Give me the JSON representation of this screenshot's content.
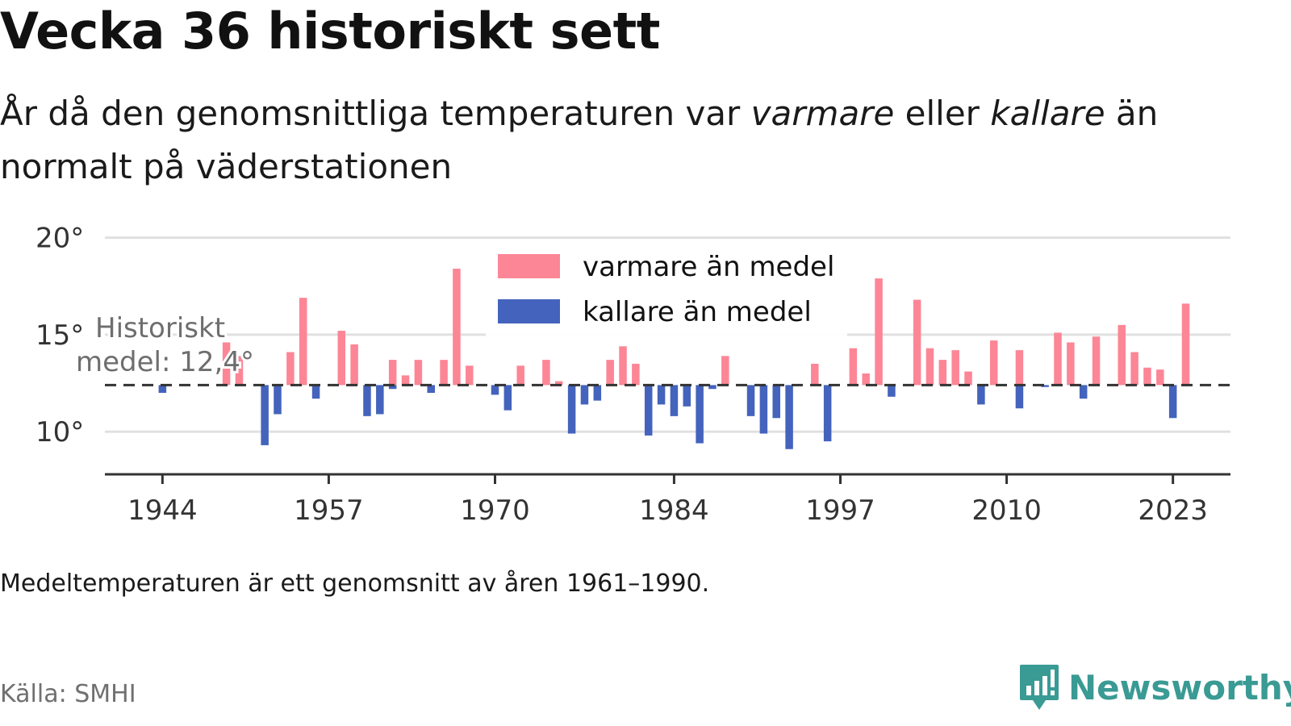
{
  "title": "Vecka 36 historiskt sett",
  "subtitle": {
    "part1": "År då den genomsnittliga temperaturen var ",
    "warm_word": "varmare",
    "part2": " eller ",
    "cold_word": "kallare",
    "part3": " än normalt på väderstationen"
  },
  "note": "Medeltemperaturen är ett genomsnitt av åren 1961–1990.",
  "source": "Källa: SMHI",
  "brand": {
    "name": "Newsworthy",
    "icon": "newsworthy-logo-icon",
    "color": "#3a9a94"
  },
  "colors": {
    "warm": "#fc8696",
    "cold": "#4463bc",
    "grid": "#e0e0e0",
    "axis": "#333333",
    "reference": "#333333"
  },
  "chart_data": {
    "type": "bar",
    "x_ticks": [
      1944,
      1957,
      1970,
      1984,
      1997,
      2010,
      2023
    ],
    "y_ticks": [
      10,
      15,
      20
    ],
    "y_tick_suffix": "°",
    "ylim": [
      7.8,
      20.4
    ],
    "xlim": [
      1939.5,
      2027.5
    ],
    "grid": true,
    "reference": {
      "value": 12.4,
      "label_line1": "Historiskt",
      "label_line2": "medel: 12,4°"
    },
    "legend": {
      "position": "top-center",
      "items": [
        {
          "label": "varmare än medel",
          "color": "#fc8696"
        },
        {
          "label": "kallare än medel",
          "color": "#4463bc"
        }
      ]
    },
    "series": [
      {
        "name": "varmare än medel",
        "points": [
          [
            1949,
            14.6
          ],
          [
            1950,
            13.9
          ],
          [
            1954,
            14.1
          ],
          [
            1955,
            16.9
          ],
          [
            1958,
            15.2
          ],
          [
            1959,
            14.5
          ],
          [
            1962,
            13.7
          ],
          [
            1963,
            12.9
          ],
          [
            1964,
            13.7
          ],
          [
            1966,
            13.7
          ],
          [
            1967,
            18.4
          ],
          [
            1968,
            13.4
          ],
          [
            1972,
            13.4
          ],
          [
            1974,
            13.7
          ],
          [
            1975,
            12.6
          ],
          [
            1979,
            13.7
          ],
          [
            1980,
            14.4
          ],
          [
            1981,
            13.5
          ],
          [
            1988,
            13.9
          ],
          [
            1995,
            13.5
          ],
          [
            1998,
            14.3
          ],
          [
            1999,
            13.0
          ],
          [
            2000,
            17.9
          ],
          [
            2003,
            16.8
          ],
          [
            2004,
            14.3
          ],
          [
            2005,
            13.7
          ],
          [
            2006,
            14.2
          ],
          [
            2007,
            13.1
          ],
          [
            2009,
            14.7
          ],
          [
            2011,
            14.2
          ],
          [
            2014,
            15.1
          ],
          [
            2015,
            14.6
          ],
          [
            2017,
            14.9
          ],
          [
            2019,
            15.5
          ],
          [
            2020,
            14.1
          ],
          [
            2021,
            13.3
          ],
          [
            2022,
            13.2
          ],
          [
            2024,
            16.6
          ]
        ]
      },
      {
        "name": "kallare än medel",
        "points": [
          [
            1944,
            12.0
          ],
          [
            1952,
            9.3
          ],
          [
            1953,
            10.9
          ],
          [
            1956,
            11.7
          ],
          [
            1960,
            10.8
          ],
          [
            1961,
            10.9
          ],
          [
            1962,
            12.2
          ],
          [
            1965,
            12.0
          ],
          [
            1970,
            11.9
          ],
          [
            1971,
            11.1
          ],
          [
            1976,
            9.9
          ],
          [
            1977,
            11.4
          ],
          [
            1978,
            11.6
          ],
          [
            1982,
            9.8
          ],
          [
            1983,
            11.4
          ],
          [
            1984,
            10.8
          ],
          [
            1985,
            11.3
          ],
          [
            1986,
            9.4
          ],
          [
            1987,
            12.2
          ],
          [
            1990,
            10.8
          ],
          [
            1991,
            9.9
          ],
          [
            1992,
            10.7
          ],
          [
            1993,
            9.1
          ],
          [
            1996,
            9.5
          ],
          [
            2001,
            11.8
          ],
          [
            2008,
            11.4
          ],
          [
            2011,
            11.2
          ],
          [
            2013,
            12.3
          ],
          [
            2016,
            11.7
          ],
          [
            2023,
            10.7
          ]
        ]
      }
    ]
  }
}
